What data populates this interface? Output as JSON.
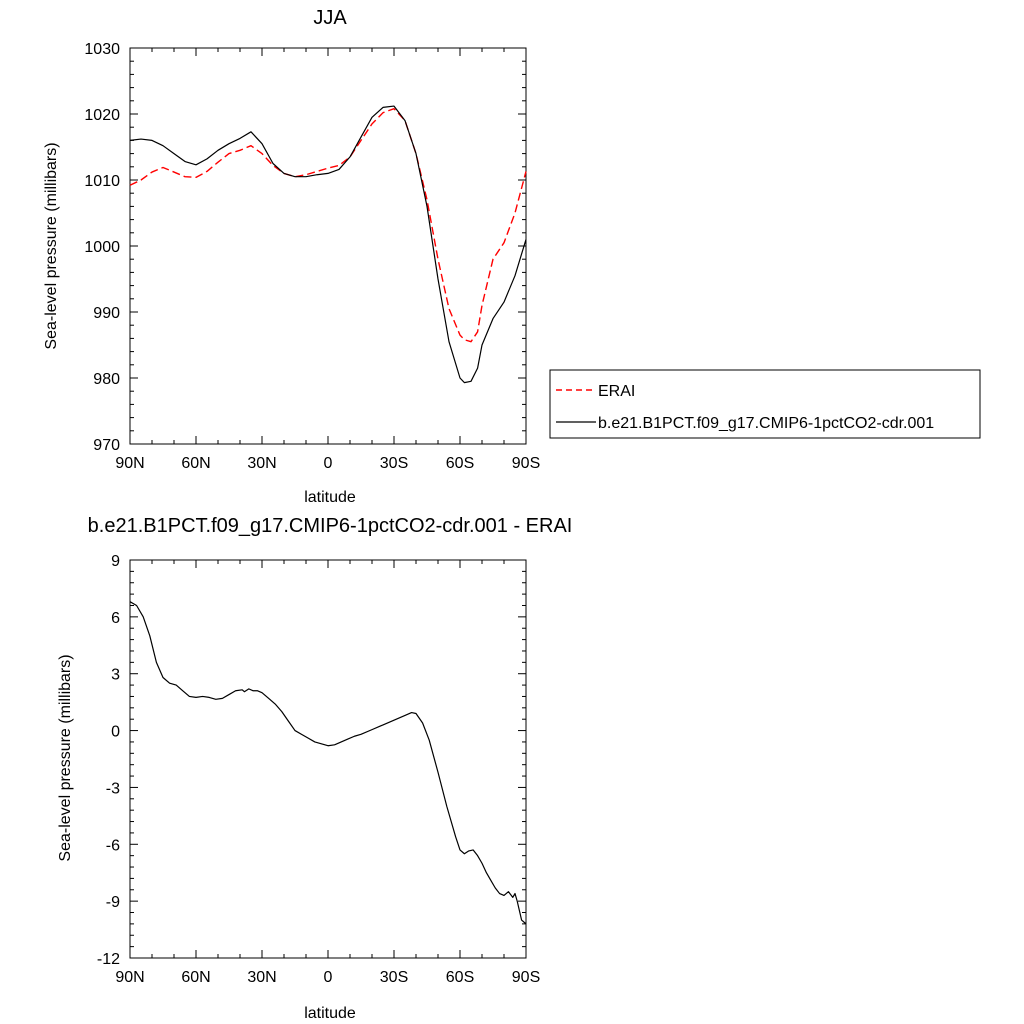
{
  "chart_data": [
    {
      "type": "line",
      "title": "JJA",
      "xlabel": "latitude",
      "ylabel": "Sea-level pressure (millibars)",
      "xlim": [
        -90,
        90
      ],
      "ylim": [
        970,
        1030
      ],
      "x_ticks": [
        -90,
        -60,
        -30,
        0,
        30,
        60,
        90
      ],
      "x_tick_labels": [
        "90N",
        "60N",
        "30N",
        "0",
        "30S",
        "60S",
        "90S"
      ],
      "y_ticks": [
        970,
        980,
        990,
        1000,
        1010,
        1020,
        1030
      ],
      "y_tick_labels": [
        "970",
        "980",
        "990",
        "1000",
        "1010",
        "1020",
        "1030"
      ],
      "legend": {
        "position": "right",
        "entries": [
          {
            "label": "ERAI",
            "style": "dashed",
            "color": "#ff0000"
          },
          {
            "label": "b.e21.B1PCT.f09_g17.CMIP6-1pctCO2-cdr.001",
            "style": "solid",
            "color": "#000000"
          }
        ]
      },
      "series": [
        {
          "name": "ERAI",
          "color": "#ff0000",
          "style": "dashed",
          "x": [
            -90,
            -85,
            -80,
            -75,
            -70,
            -65,
            -60,
            -55,
            -50,
            -45,
            -40,
            -35,
            -30,
            -25,
            -20,
            -15,
            -10,
            -5,
            0,
            5,
            10,
            15,
            20,
            25,
            30,
            35,
            40,
            45,
            50,
            55,
            60,
            62,
            65,
            68,
            70,
            75,
            80,
            85,
            90
          ],
          "y": [
            1009.2,
            1010.0,
            1011.2,
            1011.9,
            1011.2,
            1010.5,
            1010.4,
            1011.3,
            1012.7,
            1014.0,
            1014.5,
            1015.2,
            1014.0,
            1012.2,
            1011.0,
            1010.5,
            1010.8,
            1011.3,
            1011.8,
            1012.2,
            1013.5,
            1016.0,
            1018.5,
            1020.2,
            1020.8,
            1019.0,
            1014.0,
            1007.0,
            998.0,
            990.5,
            986.5,
            985.8,
            985.5,
            987.0,
            991.0,
            998.0,
            1000.5,
            1005.0,
            1011.3
          ]
        },
        {
          "name": "b.e21.B1PCT.f09_g17.CMIP6-1pctCO2-cdr.001",
          "color": "#000000",
          "style": "solid",
          "x": [
            -90,
            -85,
            -80,
            -75,
            -70,
            -65,
            -60,
            -55,
            -50,
            -45,
            -40,
            -35,
            -30,
            -25,
            -20,
            -15,
            -10,
            -5,
            0,
            5,
            10,
            15,
            20,
            25,
            30,
            35,
            40,
            45,
            50,
            55,
            60,
            62,
            65,
            68,
            70,
            75,
            78,
            80,
            85,
            90
          ],
          "y": [
            1016.0,
            1016.2,
            1016.0,
            1015.2,
            1014.0,
            1012.8,
            1012.3,
            1013.2,
            1014.5,
            1015.5,
            1016.3,
            1017.3,
            1015.5,
            1012.5,
            1011.0,
            1010.5,
            1010.5,
            1010.8,
            1011.0,
            1011.6,
            1013.5,
            1016.5,
            1019.5,
            1021.0,
            1021.2,
            1019.0,
            1014.0,
            1006.0,
            995.0,
            985.5,
            980.0,
            979.3,
            979.5,
            981.5,
            985.0,
            989.0,
            990.5,
            991.5,
            995.5,
            1001.0
          ]
        }
      ]
    },
    {
      "type": "line",
      "title": "b.e21.B1PCT.f09_g17.CMIP6-1pctCO2-cdr.001 - ERAI",
      "xlabel": "latitude",
      "ylabel": "Sea-level pressure (millibars)",
      "xlim": [
        -90,
        90
      ],
      "ylim": [
        -12,
        9
      ],
      "x_ticks": [
        -90,
        -60,
        -30,
        0,
        30,
        60,
        90
      ],
      "x_tick_labels": [
        "90N",
        "60N",
        "30N",
        "0",
        "30S",
        "60S",
        "90S"
      ],
      "y_ticks": [
        -12,
        -9,
        -6,
        -3,
        0,
        3,
        6,
        9
      ],
      "y_tick_labels": [
        "-12",
        "-9",
        "-6",
        "-3",
        "0",
        "3",
        "6",
        "9"
      ],
      "series": [
        {
          "name": "b.e21.B1PCT.f09_g17.CMIP6-1pctCO2-cdr.001 - ERAI",
          "color": "#000000",
          "style": "solid",
          "x": [
            -90,
            -87,
            -84,
            -81,
            -78,
            -75,
            -72,
            -69,
            -66,
            -63,
            -60,
            -57,
            -54,
            -51,
            -48,
            -45,
            -42,
            -39,
            -38,
            -36,
            -34,
            -32,
            -30,
            -27,
            -24,
            -21,
            -18,
            -15,
            -12,
            -9,
            -6,
            -3,
            0,
            3,
            6,
            9,
            12,
            15,
            20,
            25,
            30,
            35,
            38,
            40,
            43,
            46,
            50,
            54,
            58,
            60,
            62,
            64,
            66,
            68,
            70,
            72,
            74,
            76,
            78,
            80,
            82,
            84,
            85,
            86,
            88,
            90
          ],
          "y": [
            6.8,
            6.6,
            6.0,
            5.0,
            3.6,
            2.8,
            2.5,
            2.4,
            2.1,
            1.8,
            1.75,
            1.8,
            1.75,
            1.65,
            1.7,
            1.9,
            2.1,
            2.15,
            2.05,
            2.2,
            2.1,
            2.1,
            2.0,
            1.7,
            1.4,
            1.0,
            0.5,
            0.0,
            -0.2,
            -0.4,
            -0.6,
            -0.7,
            -0.8,
            -0.75,
            -0.6,
            -0.45,
            -0.3,
            -0.2,
            0.05,
            0.3,
            0.55,
            0.8,
            0.95,
            0.9,
            0.4,
            -0.5,
            -2.2,
            -4.0,
            -5.6,
            -6.3,
            -6.5,
            -6.35,
            -6.3,
            -6.6,
            -7.0,
            -7.5,
            -7.9,
            -8.3,
            -8.6,
            -8.7,
            -8.5,
            -8.8,
            -8.6,
            -9.0,
            -10.0,
            -10.2
          ]
        }
      ]
    }
  ]
}
